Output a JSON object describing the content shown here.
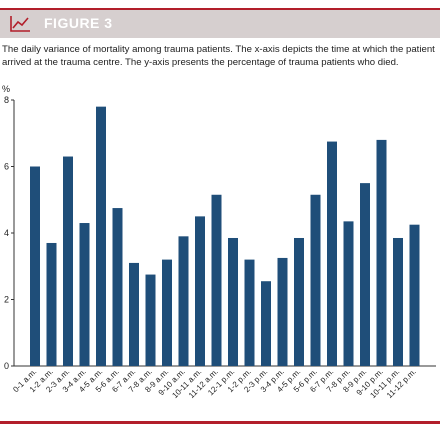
{
  "header": {
    "title": "FIGURE 3",
    "icon": "line-chart-icon",
    "accent_color": "#b21e2a",
    "band_color": "#d6cfcf"
  },
  "caption": "The daily variance of mortality among trauma patients. The x-axis depicts the time at which the patient arrived at the trauma centre. The y-axis presents the percentage of trauma patients who died.",
  "chart_data": {
    "type": "bar",
    "ylabel": "%",
    "ylim": [
      0,
      8
    ],
    "yticks": [
      0,
      2,
      4,
      6,
      8
    ],
    "bar_color": "#1f4e79",
    "grid": false,
    "categories": [
      "0-1 a.m.",
      "1-2 a.m.",
      "2-3 a.m.",
      "3-4 a.m.",
      "4-5 a.m.",
      "5-6 a.m.",
      "6-7 a.m.",
      "7-8 a.m.",
      "8-9 a.m.",
      "9-10 a.m.",
      "10-11 a.m.",
      "11-12 a.m.",
      "12-1 p.m.",
      "1-2 p.m.",
      "2-3 p.m.",
      "3-4 p.m.",
      "4-5 p.m.",
      "5-6 p.m.",
      "6-7 p.m.",
      "7-8 p.m.",
      "8-9 p.m.",
      "9-10 p.m.",
      "10-11 p.m.",
      "11-12 p.m."
    ],
    "values": [
      6.0,
      3.7,
      6.3,
      4.3,
      7.8,
      4.75,
      3.1,
      2.75,
      3.2,
      3.9,
      4.5,
      5.15,
      3.85,
      3.2,
      2.55,
      3.25,
      3.85,
      5.15,
      6.75,
      4.35,
      5.5,
      6.8,
      3.85,
      4.25
    ]
  }
}
